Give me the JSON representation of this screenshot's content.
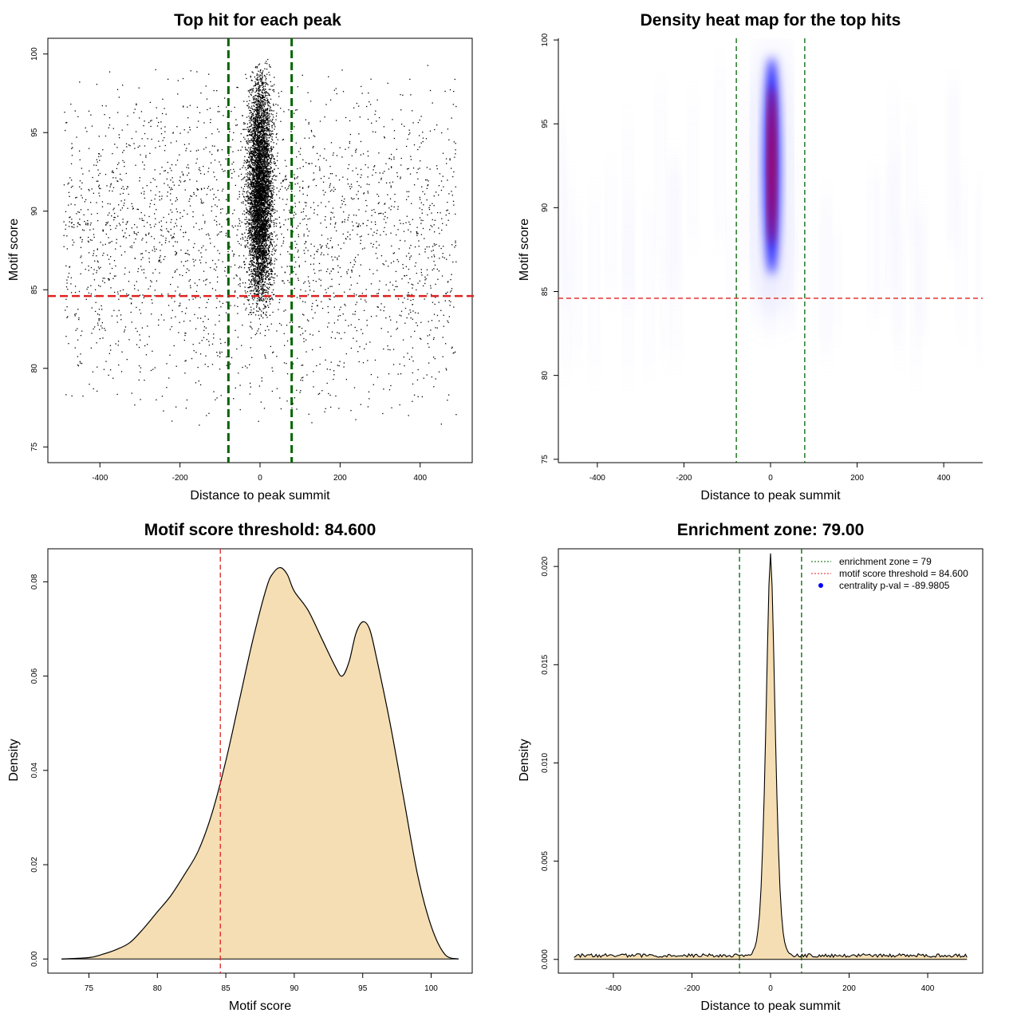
{
  "chart_data": [
    {
      "type": "scatter",
      "title": "Top hit for each peak",
      "xlabel": "Distance to peak summit",
      "ylabel": "Motif score",
      "xlim": [
        -530,
        530
      ],
      "ylim": [
        74,
        101
      ],
      "xticks": [
        -400,
        -200,
        0,
        200,
        400
      ],
      "yticks": [
        75,
        80,
        85,
        90,
        95,
        100
      ],
      "vlines": [
        -79,
        79
      ],
      "hline": 84.6,
      "vline_color": "#006400",
      "hline_color": "#dd2222",
      "point_color": "#000000",
      "background_points": {
        "count": 2600,
        "x_range": [
          -490,
          490
        ],
        "y_range": [
          76,
          99.5
        ],
        "y_mode": 89
      },
      "central_cluster": {
        "count": 5200,
        "x_mean": 0,
        "x_sd": 15,
        "y_range": [
          83,
          99.7
        ],
        "y_mode": 91
      }
    },
    {
      "type": "heatmap",
      "title": "Density heat map for the top hits",
      "xlabel": "Distance to peak summit",
      "ylabel": "Motif score",
      "xlim": [
        -490,
        490
      ],
      "ylim": [
        74.8,
        100.1
      ],
      "xticks": [
        -400,
        -200,
        0,
        200,
        400
      ],
      "yticks": [
        75,
        80,
        85,
        90,
        95,
        100
      ],
      "vlines": [
        -79,
        79
      ],
      "hline": 84.6,
      "vline_color": "#006400",
      "hline_color": "#dd2222",
      "low_color": "#ffffff",
      "mid_color": "#0000ff",
      "high_color": "#ff0000",
      "hotspot": {
        "x": 3,
        "y_range": [
          84,
          99
        ],
        "peak_y": 95.5
      }
    },
    {
      "type": "area",
      "title": "Motif score threshold: 84.600",
      "xlabel": "Motif score",
      "ylabel": "Density",
      "xlim": [
        72,
        103
      ],
      "ylim": [
        -0.003,
        0.087
      ],
      "xticks": [
        75,
        80,
        85,
        90,
        95,
        100
      ],
      "yticks": [
        0.0,
        0.02,
        0.04,
        0.06,
        0.08
      ],
      "ytick_labels": [
        "0.00",
        "0.02",
        "0.04",
        "0.06",
        "0.08"
      ],
      "vline": 84.6,
      "vline_color": "#dd2222",
      "fill_color": "#f5deb3",
      "x": [
        73,
        75,
        76,
        77,
        78,
        79,
        80,
        81,
        82,
        83,
        84,
        85,
        86,
        87,
        88,
        88.5,
        89,
        89.5,
        90,
        91,
        92,
        93,
        93.5,
        94,
        94.5,
        95,
        95.5,
        96,
        97,
        98,
        99,
        100,
        101,
        102
      ],
      "values": [
        0,
        0.0003,
        0.001,
        0.002,
        0.0035,
        0.0065,
        0.01,
        0.0135,
        0.018,
        0.023,
        0.031,
        0.042,
        0.055,
        0.068,
        0.079,
        0.082,
        0.083,
        0.0815,
        0.078,
        0.074,
        0.068,
        0.062,
        0.06,
        0.063,
        0.069,
        0.0715,
        0.07,
        0.064,
        0.05,
        0.034,
        0.018,
        0.007,
        0.001,
        0
      ]
    },
    {
      "type": "area",
      "title": "Enrichment zone: 79.00",
      "xlabel": "Distance to peak summit",
      "ylabel": "Density",
      "xlim": [
        -540,
        540
      ],
      "ylim": [
        -0.0007,
        0.0209
      ],
      "xticks": [
        -400,
        -200,
        0,
        200,
        400
      ],
      "yticks": [
        0.0,
        0.005,
        0.01,
        0.015,
        0.02
      ],
      "ytick_labels": [
        "0.000",
        "0.005",
        "0.010",
        "0.015",
        "0.020"
      ],
      "vlines": [
        -79,
        79
      ],
      "vline_color": "#006400",
      "fill_color": "#f5deb3",
      "baseline_density": 0.0002,
      "peak": {
        "x": 0,
        "density": 0.0198,
        "width_sd": 11
      },
      "x_range": [
        -500,
        500
      ],
      "legend": [
        {
          "label": "enrichment zone = 79",
          "color": "#006400",
          "style": "dotted"
        },
        {
          "label": "motif score threshold = 84.600",
          "color": "#dd2222",
          "style": "dotted"
        },
        {
          "label": "centrality p-val = -89.9805",
          "color": "#0000ff",
          "style": "point"
        }
      ],
      "legend_position": "top-right"
    }
  ]
}
